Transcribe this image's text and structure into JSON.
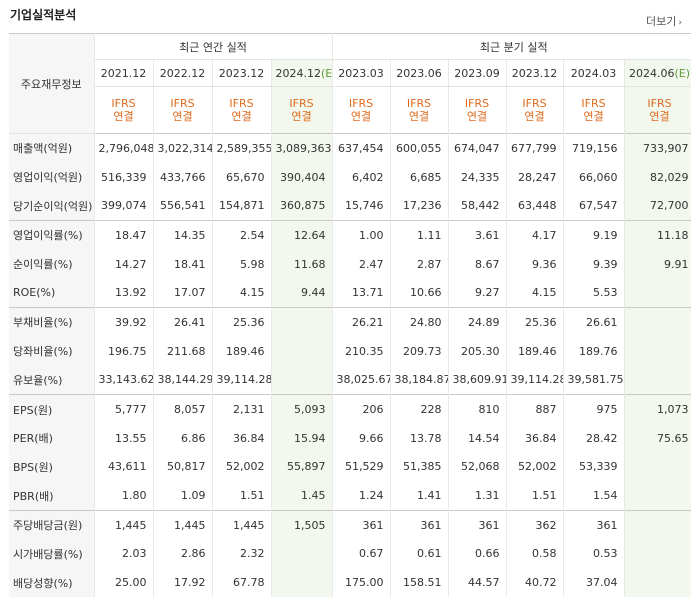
{
  "title": "기업실적분석",
  "more": "더보기",
  "header": {
    "label": "주요재무정보",
    "annual_group": "최근 연간 실적",
    "quarter_group": "최근 분기 실적",
    "annual_dates": [
      "2021.12",
      "2022.12",
      "2023.12",
      "2024.12(E)"
    ],
    "quarter_dates": [
      "2023.03",
      "2023.06",
      "2023.09",
      "2023.12",
      "2024.03",
      "2024.06(E)"
    ],
    "ifrs_line1": "IFRS",
    "ifrs_line2": "연결"
  },
  "rows": [
    {
      "label": "매출액(억원)",
      "values": [
        "2,796,048",
        "3,022,314",
        "2,589,355",
        "3,089,363",
        "637,454",
        "600,055",
        "674,047",
        "677,799",
        "719,156",
        "733,907"
      ]
    },
    {
      "label": "영업이익(억원)",
      "values": [
        "516,339",
        "433,766",
        "65,670",
        "390,404",
        "6,402",
        "6,685",
        "24,335",
        "28,247",
        "66,060",
        "82,029"
      ]
    },
    {
      "label": "당기순이익(억원)",
      "values": [
        "399,074",
        "556,541",
        "154,871",
        "360,875",
        "15,746",
        "17,236",
        "58,442",
        "63,448",
        "67,547",
        "72,700"
      ]
    },
    {
      "label": "영업이익률(%)",
      "values": [
        "18.47",
        "14.35",
        "2.54",
        "12.64",
        "1.00",
        "1.11",
        "3.61",
        "4.17",
        "9.19",
        "11.18"
      ]
    },
    {
      "label": "순이익률(%)",
      "values": [
        "14.27",
        "18.41",
        "5.98",
        "11.68",
        "2.47",
        "2.87",
        "8.67",
        "9.36",
        "9.39",
        "9.91"
      ]
    },
    {
      "label": "ROE(%)",
      "values": [
        "13.92",
        "17.07",
        "4.15",
        "9.44",
        "13.71",
        "10.66",
        "9.27",
        "4.15",
        "5.53",
        ""
      ]
    },
    {
      "label": "부채비율(%)",
      "values": [
        "39.92",
        "26.41",
        "25.36",
        "",
        "26.21",
        "24.80",
        "24.89",
        "25.36",
        "26.61",
        ""
      ]
    },
    {
      "label": "당좌비율(%)",
      "values": [
        "196.75",
        "211.68",
        "189.46",
        "",
        "210.35",
        "209.73",
        "205.30",
        "189.46",
        "189.76",
        ""
      ]
    },
    {
      "label": "유보율(%)",
      "values": [
        "33,143.62",
        "38,144.29",
        "39,114.28",
        "",
        "38,025.67",
        "38,184.87",
        "38,609.91",
        "39,114.28",
        "39,581.75",
        ""
      ]
    },
    {
      "label": "EPS(원)",
      "values": [
        "5,777",
        "8,057",
        "2,131",
        "5,093",
        "206",
        "228",
        "810",
        "887",
        "975",
        "1,073"
      ]
    },
    {
      "label": "PER(배)",
      "values": [
        "13.55",
        "6.86",
        "36.84",
        "15.94",
        "9.66",
        "13.78",
        "14.54",
        "36.84",
        "28.42",
        "75.65"
      ]
    },
    {
      "label": "BPS(원)",
      "values": [
        "43,611",
        "50,817",
        "52,002",
        "55,897",
        "51,529",
        "51,385",
        "52,068",
        "52,002",
        "53,339",
        ""
      ]
    },
    {
      "label": "PBR(배)",
      "values": [
        "1.80",
        "1.09",
        "1.51",
        "1.45",
        "1.24",
        "1.41",
        "1.31",
        "1.51",
        "1.54",
        ""
      ]
    },
    {
      "label": "주당배당금(원)",
      "values": [
        "1,445",
        "1,445",
        "1,445",
        "1,505",
        "361",
        "361",
        "361",
        "362",
        "361",
        ""
      ]
    },
    {
      "label": "시가배당률(%)",
      "values": [
        "2.03",
        "2.86",
        "2.32",
        "",
        "0.67",
        "0.61",
        "0.66",
        "0.58",
        "0.53",
        ""
      ]
    },
    {
      "label": "배당성향(%)",
      "values": [
        "25.00",
        "17.92",
        "67.78",
        "",
        "175.00",
        "158.51",
        "44.57",
        "40.72",
        "37.04",
        ""
      ]
    }
  ],
  "colors": {
    "ifrs": "#e06a1c",
    "estimate_bg": "#f2f8ee"
  }
}
